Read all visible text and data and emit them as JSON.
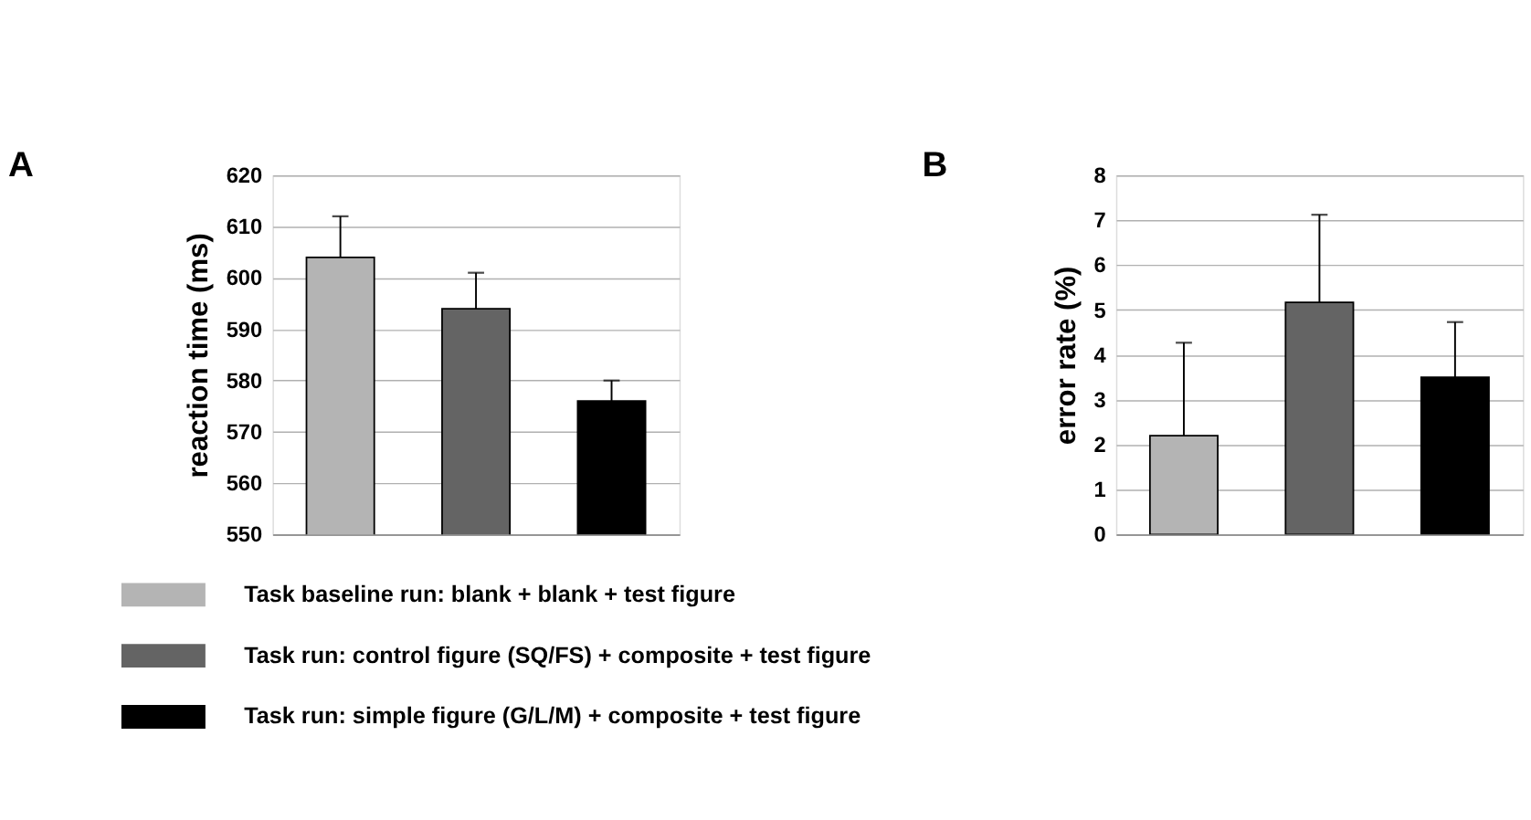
{
  "chart_data": [
    {
      "type": "bar",
      "annotations": [
        "A"
      ],
      "ylabel": "reaction time (ms)",
      "categories": [
        null,
        null,
        null
      ],
      "ylim": [
        550,
        620
      ],
      "yticks": [
        550,
        560,
        570,
        580,
        590,
        600,
        610,
        620
      ],
      "grid": "y",
      "legend": "bottom",
      "series": [
        {
          "name": "Task baseline run: blank + blank + test figure",
          "color": "#b4b4b4",
          "values": [
            604,
            null,
            null
          ],
          "errors": [
            [
              604,
              612
            ],
            null,
            null
          ]
        },
        {
          "name": "Task run: control figure (SQ/FS) + composite + test figure",
          "color": "#646464",
          "values": [
            null,
            594,
            null
          ],
          "errors": [
            null,
            [
              594,
              601
            ],
            null
          ]
        },
        {
          "name": "Task run: simple figure (G/L/M) + composite + test figure",
          "color": "#000000",
          "values": [
            null,
            null,
            576
          ],
          "errors": [
            null,
            null,
            [
              576,
              580
            ]
          ]
        }
      ]
    },
    {
      "type": "bar",
      "annotations": [
        "B"
      ],
      "ylabel": "error rate (%)",
      "categories": [
        null,
        null,
        null
      ],
      "ylim": [
        0,
        8
      ],
      "yticks": [
        0,
        1,
        2,
        3,
        4,
        5,
        6,
        7,
        8
      ],
      "grid": "y",
      "series": [
        {
          "color": "#b4b4b4",
          "values": [
            2.2,
            null,
            null
          ],
          "errors": [
            [
              2.2,
              4.27
            ],
            null,
            null
          ]
        },
        {
          "color": "#646464",
          "values": [
            null,
            5.17,
            null
          ],
          "errors": [
            null,
            [
              5.17,
              7.12
            ],
            null
          ]
        },
        {
          "color": "#000000",
          "values": [
            null,
            null,
            3.5
          ],
          "errors": [
            null,
            null,
            [
              3.5,
              4.73
            ]
          ]
        }
      ]
    }
  ]
}
